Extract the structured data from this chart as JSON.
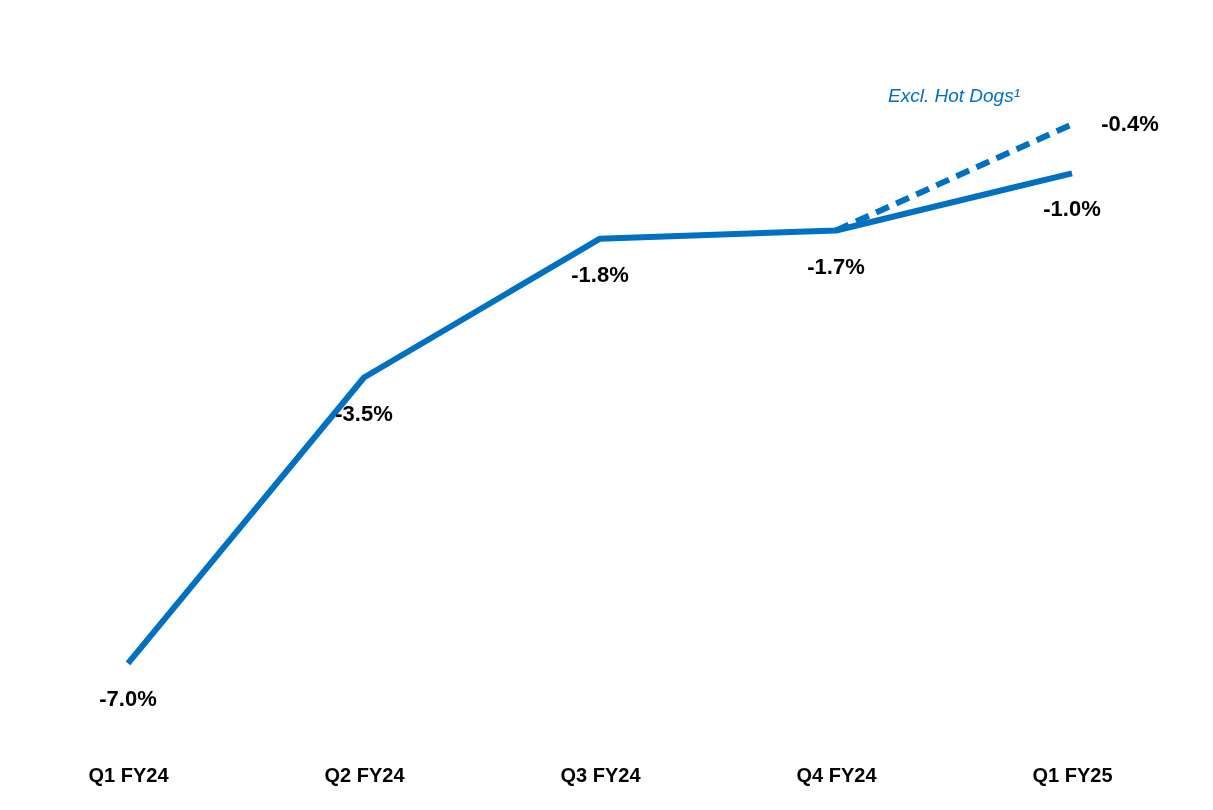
{
  "chart_data": {
    "type": "line",
    "categories": [
      "Q1 FY24",
      "Q2 FY24",
      "Q3 FY24",
      "Q4 FY24",
      "Q1 FY25"
    ],
    "series": [
      {
        "color": "#0070c0",
        "line_style": "solid",
        "values": [
          -7.0,
          -3.5,
          -1.8,
          -1.7,
          -1.0
        ],
        "value_labels": [
          "-7.0%",
          "-3.5%",
          "-1.8%",
          "-1.7%",
          "-1.0%"
        ]
      },
      {
        "name": "Excl. Hot Dogs¹",
        "color": "#0070c0",
        "line_style": "dashed",
        "values": [
          null,
          null,
          null,
          -1.7,
          -0.4
        ],
        "value_labels": [
          null,
          null,
          null,
          null,
          "-0.4%"
        ]
      }
    ],
    "marker": "none",
    "grid": false
  }
}
